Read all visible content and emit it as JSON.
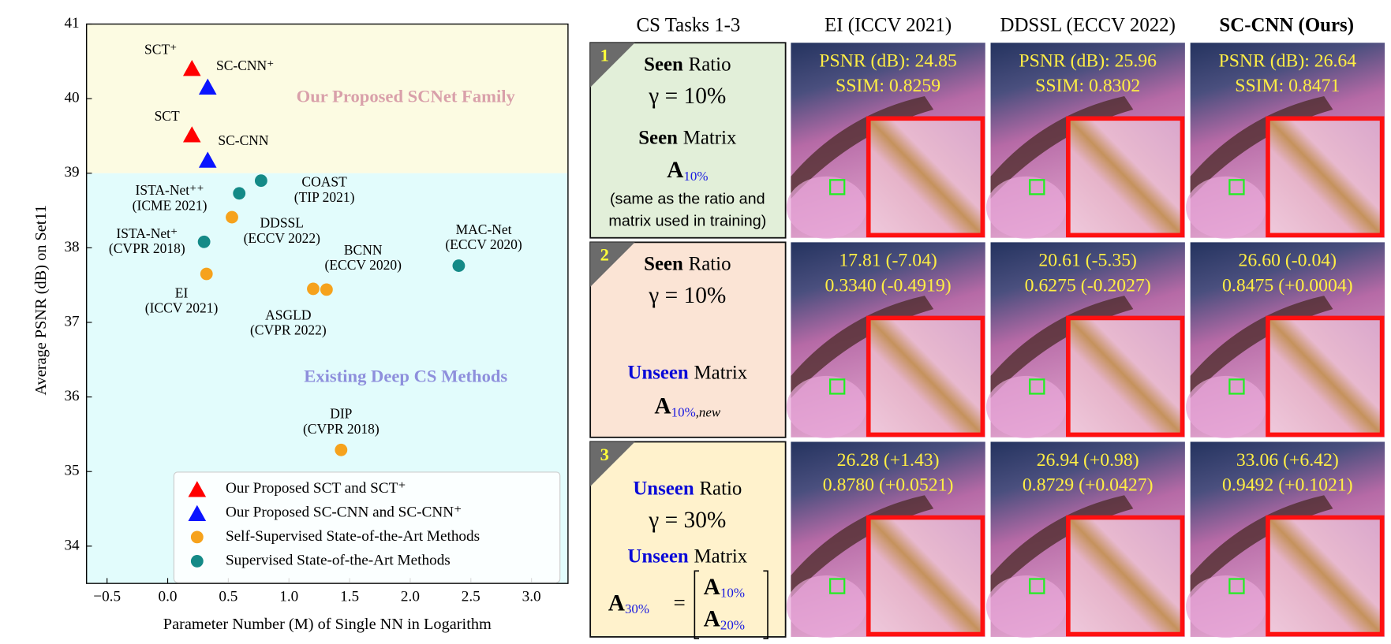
{
  "chart_data": {
    "type": "scatter",
    "xlabel": "Parameter Number (M) of Single NN in Logarithm",
    "ylabel": "Average PSNR (dB) on Set11",
    "xlim": [
      -0.669,
      3.301
    ],
    "ylim": [
      33.5,
      41.0
    ],
    "xticks": [
      {
        "value": -0.5,
        "label": "−0.5"
      },
      {
        "value": 0,
        "label": "0.0"
      },
      0.5,
      {
        "value": 1,
        "label": "1.0"
      },
      1.5,
      {
        "value": 2,
        "label": "2.0"
      },
      2.5,
      {
        "value": 3,
        "label": "3.0"
      }
    ],
    "yticks": [
      34,
      35,
      36,
      37,
      38,
      39,
      40,
      41
    ],
    "regions": [
      {
        "label": "Our Proposed SCNet Family",
        "from": 39,
        "to": 41,
        "color": "#fcfbe2",
        "text_color": "#d9a0aa"
      },
      {
        "label": "Existing Deep CS Methods",
        "from": 33.5,
        "to": 39,
        "color": "#e2fcfc",
        "text_color": "#8e8fdc"
      }
    ],
    "legend": "lower right",
    "series": [
      {
        "name": "Our Proposed SCT and SCT⁺",
        "color": "#ff0000",
        "marker": "triangle",
        "x": [
          0.2,
          0.2
        ],
        "y": [
          40.4,
          39.51
        ],
        "labels": [
          [
            "SCT⁺"
          ],
          [
            "SCT"
          ]
        ]
      },
      {
        "name": "Our Proposed SC-CNN and SC-CNN⁺",
        "color": "#0a14ff",
        "marker": "triangle",
        "x": [
          0.33,
          0.33
        ],
        "y": [
          40.15,
          39.17
        ],
        "labels": [
          [
            "SC-CNN⁺"
          ],
          [
            "SC-CNN"
          ]
        ]
      },
      {
        "name": "Self-Supervised State-of-the-Art Methods",
        "color": "#f6a21c",
        "marker": "circle",
        "x": [
          0.53,
          0.32,
          1.31,
          1.2,
          1.43
        ],
        "y": [
          38.41,
          37.65,
          37.44,
          37.45,
          35.29
        ],
        "labels": [
          [
            "DDSSL",
            "(ECCV 2022)"
          ],
          [
            "EI",
            "(ICCV 2021)"
          ],
          [
            "BCNN",
            "(ECCV 2020)"
          ],
          [
            "ASGLD",
            "(CVPR 2022)"
          ],
          [
            "DIP",
            "(CVPR 2018)"
          ]
        ]
      },
      {
        "name": "Supervised State-of-the-Art Methods",
        "color": "#148a87",
        "marker": "circle",
        "x": [
          0.77,
          0.59,
          0.3,
          2.4
        ],
        "y": [
          38.9,
          38.73,
          38.08,
          37.76
        ],
        "labels": [
          [
            "COAST",
            "(TIP 2021)"
          ],
          [
            "ISTA-Net⁺⁺",
            "(ICME 2021)"
          ],
          [
            "ISTA-Net⁺",
            "(CVPR 2018)"
          ],
          [
            "MAC-Net",
            "(ECCV 2020)"
          ]
        ]
      }
    ]
  },
  "panel": {
    "header": [
      "CS Tasks 1-3",
      "EI (ICCV 2021)",
      "DDSSL (ECCV 2022)",
      "SC-CNN (Ours)"
    ],
    "tasks": [
      {
        "number": "1",
        "color": "#e2efd9",
        "ratio_kind": "Seen",
        "ratio_word": "Ratio",
        "gamma": "γ = 10%",
        "matrix_kind": "Seen",
        "matrix_word": "Matrix",
        "matrix": "A",
        "matrix_sub": "10%",
        "note": [
          "(same as the ratio and",
          "matrix used in training)"
        ],
        "metrics": [
          [
            "PSNR (dB): 24.85",
            "SSIM: 0.8259"
          ],
          [
            "PSNR (dB): 25.96",
            "SSIM: 0.8302"
          ],
          [
            "PSNR (dB): 26.64",
            "SSIM: 0.8471"
          ]
        ]
      },
      {
        "number": "2",
        "color": "#fbe4d5",
        "ratio_kind": "Seen",
        "ratio_word": "Ratio",
        "gamma": "γ = 10%",
        "matrix_kind": "Unseen",
        "matrix_word": "Matrix",
        "matrix": "A",
        "matrix_sub": "10%",
        "matrix_sub_extra": ",new",
        "metrics": [
          [
            "17.81 (-7.04)",
            "0.3340 (-0.4919)"
          ],
          [
            "20.61 (-5.35)",
            "0.6275 (-0.2027)"
          ],
          [
            "26.60 (-0.04)",
            "0.8475 (+0.0004)"
          ]
        ]
      },
      {
        "number": "3",
        "color": "#fff2cc",
        "ratio_kind": "Unseen",
        "ratio_word": "Ratio",
        "gamma": "γ = 30%",
        "matrix_kind": "Unseen",
        "matrix_word": "Matrix",
        "matrix": "A",
        "matrix_sub": "30%",
        "matrix_eq": "=",
        "stack": [
          {
            "text": "A",
            "sub": "10%"
          },
          {
            "text": "A",
            "sub": "20%"
          }
        ],
        "metrics": [
          [
            "26.28 (+1.43)",
            "0.8780 (+0.0521)"
          ],
          [
            "26.94 (+0.98)",
            "0.8729 (+0.0427)"
          ],
          [
            "33.06 (+6.42)",
            "0.9492 (+0.1021)"
          ]
        ]
      }
    ]
  }
}
